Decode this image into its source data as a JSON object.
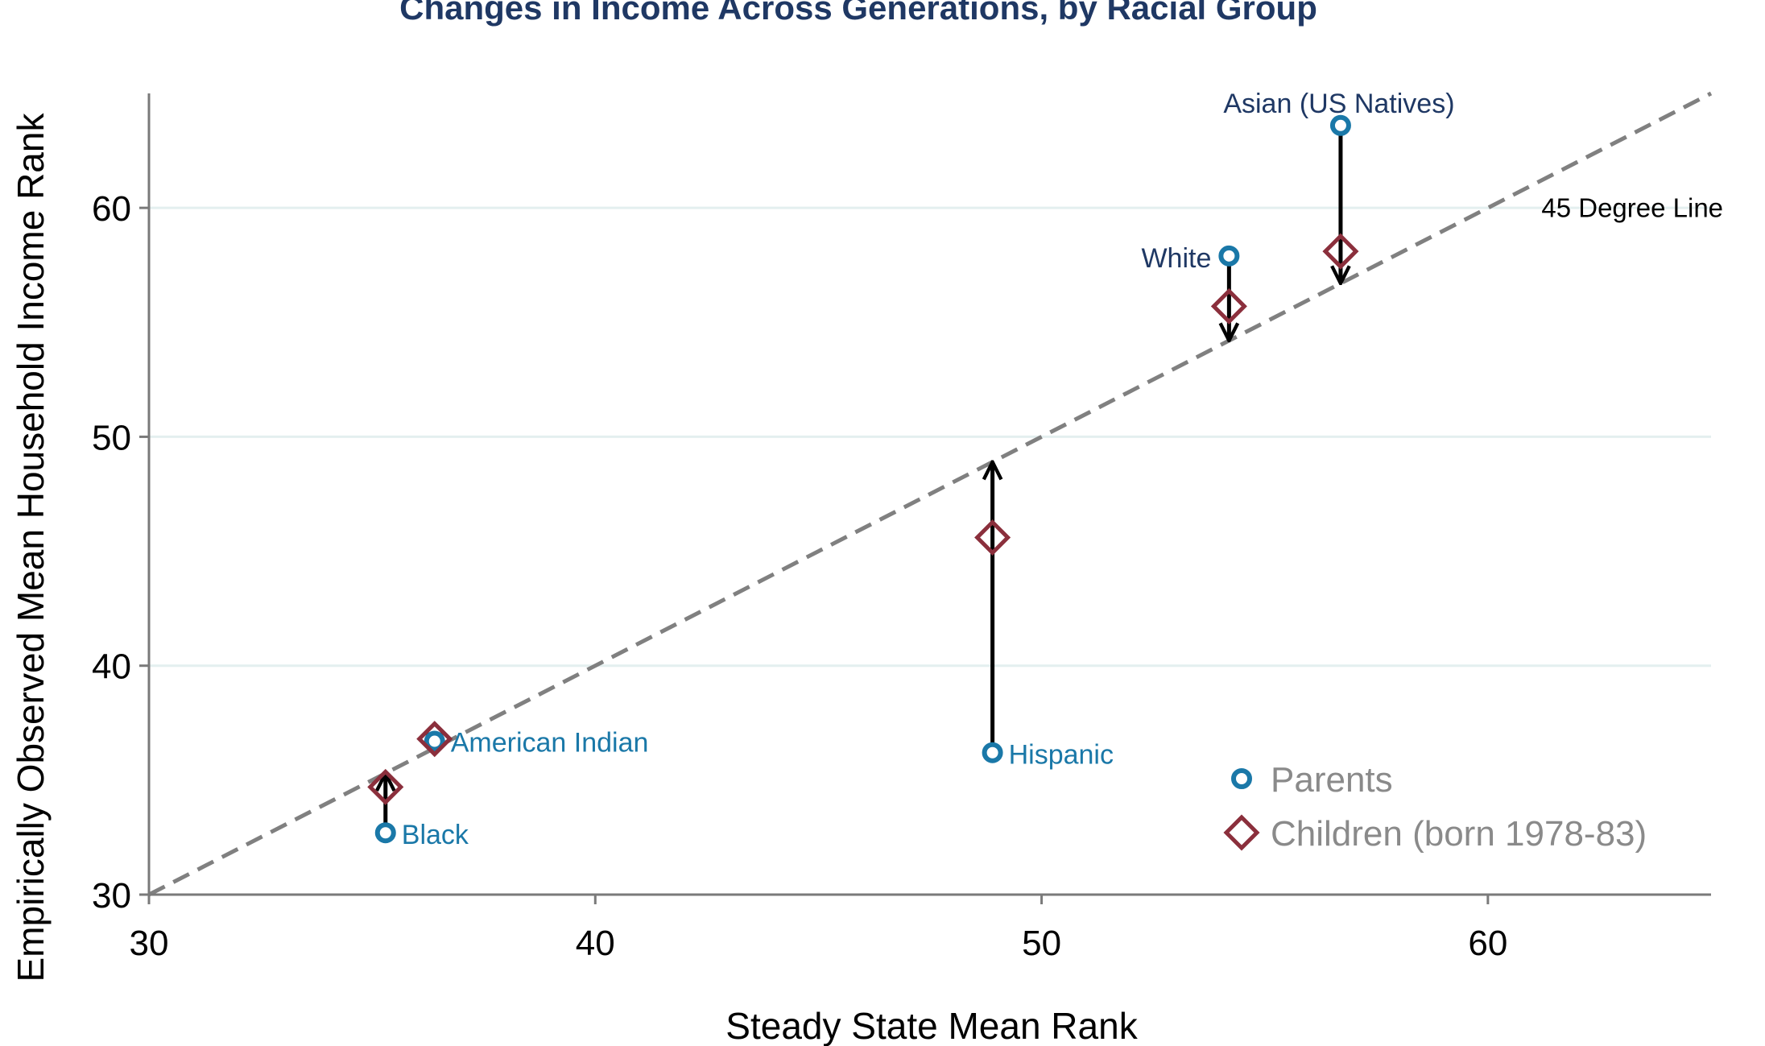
{
  "chart_data": {
    "type": "scatter",
    "title": "Changes in Income Across Generations, by Racial Group",
    "xlabel": "Steady State Mean Rank",
    "ylabel": "Empirically Observed Mean Household Income Rank",
    "xlim": [
      30,
      65
    ],
    "ylim": [
      30,
      65
    ],
    "xticks": [
      30,
      40,
      50,
      60
    ],
    "yticks": [
      30,
      40,
      50,
      60
    ],
    "grid": "horizontal",
    "legend_position": "bottom-right",
    "reference_line": {
      "label": "45 Degree Line",
      "slope": 1,
      "intercept": 0
    },
    "series": [
      {
        "name": "Parents",
        "marker": "circle",
        "color": "#1a78a8"
      },
      {
        "name": "Children (born 1978-83)",
        "marker": "diamond",
        "color": "#8b2f3c"
      }
    ],
    "groups": [
      {
        "label": "Asian (US Natives)",
        "label_color": "#1f3864",
        "x": 56.7,
        "parents": 63.6,
        "children": 58.1
      },
      {
        "label": "White",
        "label_color": "#1f3864",
        "x": 54.2,
        "parents": 57.9,
        "children": 55.7
      },
      {
        "label": "Hispanic",
        "label_color": "#1a78a8",
        "x": 48.9,
        "parents": 36.2,
        "children": 45.6
      },
      {
        "label": "American Indian",
        "label_color": "#1a78a8",
        "x": 36.4,
        "parents": 36.7,
        "children": 36.8
      },
      {
        "label": "Black",
        "label_color": "#1a78a8",
        "x": 35.3,
        "parents": 32.7,
        "children": 34.7
      }
    ],
    "arrows": [
      {
        "group": "Asian (US Natives)",
        "from": 63.6,
        "to": 56.7
      },
      {
        "group": "White",
        "from": 57.9,
        "to": 54.2
      },
      {
        "group": "Hispanic",
        "from": 36.2,
        "to": 48.9
      },
      {
        "group": "American Indian",
        "from": 36.7,
        "to": 36.4
      },
      {
        "group": "Black",
        "from": 32.7,
        "to": 35.3
      }
    ],
    "colors": {
      "parents": "#1a78a8",
      "children": "#8b2f3c",
      "reference_line": "#808080",
      "grid": "#e4efef",
      "axis": "#7a7a7a",
      "arrow": "#000000"
    }
  }
}
